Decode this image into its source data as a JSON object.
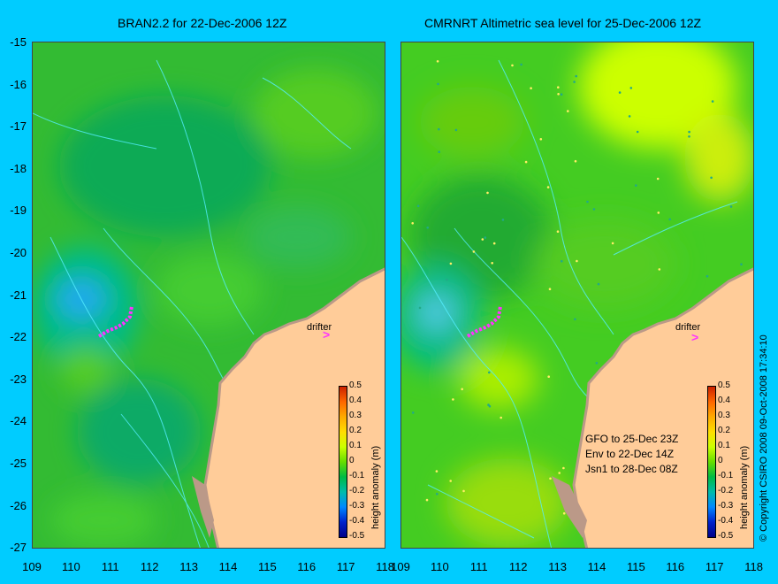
{
  "left_panel": {
    "title": "BRAN2.2 for 22-Dec-2006 12Z",
    "drifter_label": "drifter"
  },
  "right_panel": {
    "title": "CMRNRT Altimetric sea level  for 25-Dec-2006 12Z",
    "drifter_label": "drifter",
    "notes": [
      "GFO to 25-Dec 23Z",
      "Env to 22-Dec 14Z",
      "Jsn1 to 28-Dec 08Z"
    ],
    "copyright": "© Copyright CSIRO 2008   09-Oct-2008 17:34:10"
  },
  "y_axis_labels": [
    "-15",
    "-16",
    "-17",
    "-18",
    "-19",
    "-20",
    "-21",
    "-22",
    "-23",
    "-24",
    "-25",
    "-26",
    "-27"
  ],
  "x_axis_labels": [
    "109",
    "110",
    "111",
    "112",
    "113",
    "114",
    "115",
    "116",
    "117",
    "118"
  ],
  "colorbar": {
    "label": "height anomaly (m)",
    "ticks": [
      "0.5",
      "0.4",
      "0.3",
      "0.2",
      "0.1",
      "0",
      "-0.1",
      "-0.2",
      "-0.3",
      "-0.4",
      "-0.5"
    ],
    "colors": [
      "#cc2200",
      "#ff6600",
      "#ffaa00",
      "#ffdd00",
      "#ccff00",
      "#66dd00",
      "#00bb44",
      "#00bbaa",
      "#0088ff",
      "#0022cc",
      "#000088"
    ]
  },
  "colors": {
    "background": "#00ccff",
    "land": "#ffcc99",
    "coast_fringe": "#bb9988",
    "drifter_track": "#ff33ff"
  }
}
